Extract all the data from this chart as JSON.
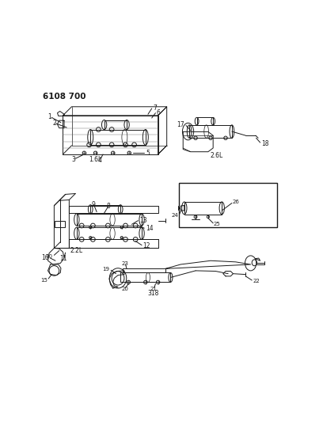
{
  "title": "6108 700",
  "bg_color": "#ffffff",
  "line_color": "#1a1a1a",
  "text_color": "#1a1a1a",
  "label_1_6L": "1.6L",
  "label_2_6L": "2.6L",
  "label_2_2L": "2.2L",
  "label_318": "318",
  "fig_width": 4.08,
  "fig_height": 5.33,
  "dpi": 100
}
